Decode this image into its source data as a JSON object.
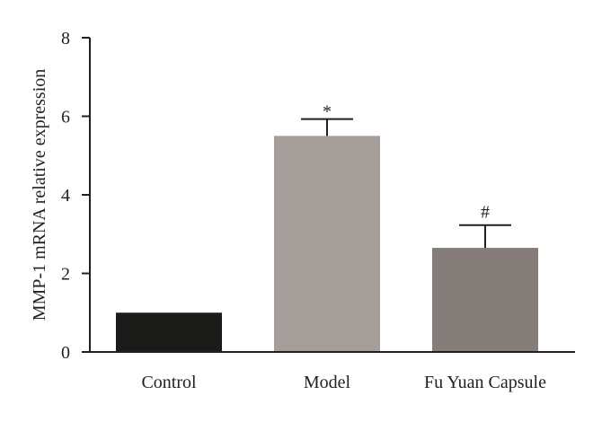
{
  "chart_data": {
    "type": "bar",
    "categories": [
      "Control",
      "Model",
      "Fu Yuan Capsule"
    ],
    "values": [
      1.0,
      5.5,
      2.65
    ],
    "errors": [
      0.0,
      0.43,
      0.58
    ],
    "annotations": [
      "",
      "*",
      "#"
    ],
    "colors": [
      "#1b1b19",
      "#a59d9a",
      "#857d79"
    ],
    "xlabel": "",
    "ylabel": "MMP-1 mRNA relative expression",
    "ylim": [
      0,
      8
    ],
    "yticks": [
      0,
      2,
      4,
      6,
      8
    ],
    "ytick_labels": [
      "0",
      "2",
      "4",
      "6",
      "8"
    ],
    "grid": false,
    "legend": "none"
  }
}
